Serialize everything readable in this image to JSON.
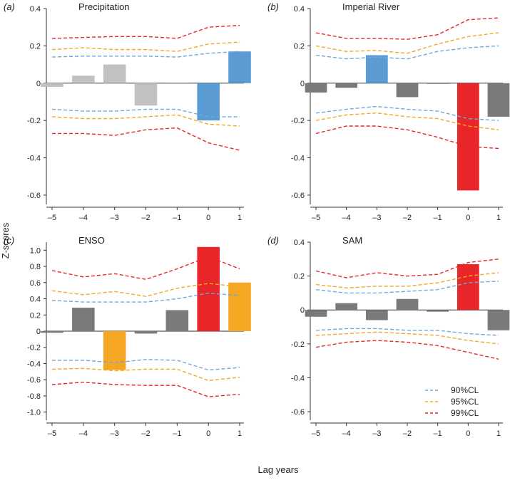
{
  "figure": {
    "ylabel": "Z-scores",
    "xlabel": "Lag years",
    "legend": [
      {
        "label": "90%CL",
        "color": "#6fa8dc"
      },
      {
        "label": "95%CL",
        "color": "#f5a623"
      },
      {
        "label": "99%CL",
        "color": "#e8262a"
      }
    ]
  },
  "chart_data": [
    {
      "type": "bar",
      "letter": "(a)",
      "title": "Precipitation",
      "categories": [
        "-5",
        "-4",
        "-3",
        "-2",
        "-1",
        "0",
        "1"
      ],
      "values": [
        -0.02,
        0.04,
        0.1,
        -0.12,
        -0.005,
        -0.2,
        0.17
      ],
      "bar_colors": [
        "#c3c0c1",
        "#c3c0c1",
        "#c3c0c1",
        "#c3c0c1",
        "#c3c0c1",
        "#5a9bd4",
        "#5a9bd4"
      ],
      "ylim": [
        -0.65,
        0.4
      ],
      "yticks": [
        -0.6,
        -0.4,
        -0.2,
        0,
        0.2,
        0.4
      ],
      "ytick_labels": [
        "-0.6",
        "-0.4",
        "-0.2",
        "0",
        "0.2",
        "0.4"
      ],
      "confidence_bands": [
        {
          "name": "90%CL",
          "upper": [
            0.14,
            0.145,
            0.145,
            0.145,
            0.14,
            0.16,
            0.17
          ],
          "lower": [
            -0.14,
            -0.15,
            -0.15,
            -0.14,
            -0.14,
            -0.18,
            -0.18
          ]
        },
        {
          "name": "95%CL",
          "upper": [
            0.18,
            0.19,
            0.18,
            0.18,
            0.17,
            0.21,
            0.22
          ],
          "lower": [
            -0.18,
            -0.19,
            -0.19,
            -0.18,
            -0.17,
            -0.22,
            -0.23
          ]
        },
        {
          "name": "99%CL",
          "upper": [
            0.24,
            0.245,
            0.25,
            0.25,
            0.24,
            0.3,
            0.31
          ],
          "lower": [
            -0.27,
            -0.27,
            -0.28,
            -0.25,
            -0.24,
            -0.32,
            -0.36
          ]
        }
      ]
    },
    {
      "type": "bar",
      "letter": "(b)",
      "title": "Imperial River",
      "categories": [
        "-5",
        "-4",
        "-3",
        "-2",
        "-1",
        "0",
        "1"
      ],
      "values": [
        -0.05,
        -0.025,
        0.15,
        -0.075,
        0.0,
        -0.575,
        -0.18
      ],
      "bar_colors": [
        "#7a7a7a",
        "#7a7a7a",
        "#5a9bd4",
        "#7a7a7a",
        "#7a7a7a",
        "#e8262a",
        "#7a7a7a"
      ],
      "ylim": [
        -0.65,
        0.4
      ],
      "yticks": [
        -0.6,
        -0.4,
        -0.2,
        0,
        0.2,
        0.4
      ],
      "ytick_labels": [
        "-0.6",
        "-0.4",
        "-0.2",
        "0",
        "0.2",
        "0.4"
      ],
      "confidence_bands": [
        {
          "name": "90%CL",
          "upper": [
            0.15,
            0.13,
            0.14,
            0.13,
            0.17,
            0.19,
            0.2
          ],
          "lower": [
            -0.16,
            -0.14,
            -0.125,
            -0.14,
            -0.15,
            -0.19,
            -0.2
          ]
        },
        {
          "name": "95%CL",
          "upper": [
            0.2,
            0.17,
            0.175,
            0.16,
            0.21,
            0.25,
            0.27
          ],
          "lower": [
            -0.2,
            -0.17,
            -0.16,
            -0.18,
            -0.19,
            -0.23,
            -0.25
          ]
        },
        {
          "name": "99%CL",
          "upper": [
            0.27,
            0.24,
            0.24,
            0.235,
            0.26,
            0.34,
            0.35
          ],
          "lower": [
            -0.27,
            -0.23,
            -0.23,
            -0.25,
            -0.29,
            -0.34,
            -0.35
          ]
        }
      ]
    },
    {
      "type": "bar",
      "letter": "(c)",
      "title": "ENSO",
      "categories": [
        "-5",
        "-4",
        "-3",
        "-2",
        "-1",
        "0",
        "1"
      ],
      "values": [
        -0.02,
        0.29,
        -0.48,
        -0.03,
        0.26,
        1.04,
        0.6
      ],
      "bar_colors": [
        "#7a7a7a",
        "#7a7a7a",
        "#f5a623",
        "#7a7a7a",
        "#7a7a7a",
        "#e8262a",
        "#f5a623"
      ],
      "ylim": [
        -1.1,
        1.1
      ],
      "yticks": [
        -1.0,
        -0.8,
        -0.6,
        -0.4,
        -0.2,
        0,
        0.2,
        0.4,
        0.6,
        0.8,
        1.0
      ],
      "ytick_labels": [
        "-1.0",
        "-0.8",
        "-0.6",
        "-0.4",
        "-0.2",
        "0",
        "0.2",
        "0.4",
        "0.6",
        "0.8",
        "1.0"
      ],
      "confidence_bands": [
        {
          "name": "90%CL",
          "upper": [
            0.38,
            0.36,
            0.36,
            0.36,
            0.4,
            0.47,
            0.44
          ],
          "lower": [
            -0.36,
            -0.36,
            -0.39,
            -0.35,
            -0.36,
            -0.48,
            -0.45
          ]
        },
        {
          "name": "95%CL",
          "upper": [
            0.5,
            0.45,
            0.49,
            0.43,
            0.53,
            0.59,
            0.55
          ],
          "lower": [
            -0.47,
            -0.46,
            -0.49,
            -0.47,
            -0.47,
            -0.61,
            -0.57
          ]
        },
        {
          "name": "99%CL",
          "upper": [
            0.75,
            0.67,
            0.71,
            0.64,
            0.77,
            0.92,
            0.77
          ],
          "lower": [
            -0.66,
            -0.63,
            -0.66,
            -0.67,
            -0.67,
            -0.81,
            -0.78
          ]
        }
      ]
    },
    {
      "type": "bar",
      "letter": "(d)",
      "title": "SAM",
      "categories": [
        "-5",
        "-4",
        "-3",
        "-2",
        "-1",
        "0",
        "1"
      ],
      "values": [
        -0.04,
        0.04,
        -0.06,
        0.065,
        -0.01,
        0.27,
        -0.12
      ],
      "bar_colors": [
        "#7a7a7a",
        "#7a7a7a",
        "#7a7a7a",
        "#7a7a7a",
        "#7a7a7a",
        "#e8262a",
        "#7a7a7a"
      ],
      "ylim": [
        -0.65,
        0.4
      ],
      "yticks": [
        -0.6,
        -0.4,
        -0.2,
        0,
        0.2,
        0.4
      ],
      "ytick_labels": [
        "-0.6",
        "-0.4",
        "-0.2",
        "0",
        "0.2",
        "0.4"
      ],
      "confidence_bands": [
        {
          "name": "90%CL",
          "upper": [
            0.12,
            0.1,
            0.1,
            0.11,
            0.12,
            0.16,
            0.17
          ],
          "lower": [
            -0.12,
            -0.11,
            -0.11,
            -0.12,
            -0.12,
            -0.14,
            -0.15
          ]
        },
        {
          "name": "95%CL",
          "upper": [
            0.15,
            0.13,
            0.14,
            0.14,
            0.16,
            0.2,
            0.22
          ],
          "lower": [
            -0.15,
            -0.14,
            -0.13,
            -0.14,
            -0.15,
            -0.18,
            -0.2
          ]
        },
        {
          "name": "99%CL",
          "upper": [
            0.23,
            0.19,
            0.22,
            0.2,
            0.21,
            0.28,
            0.3
          ],
          "lower": [
            -0.22,
            -0.19,
            -0.18,
            -0.19,
            -0.21,
            -0.25,
            -0.29
          ]
        }
      ]
    }
  ]
}
